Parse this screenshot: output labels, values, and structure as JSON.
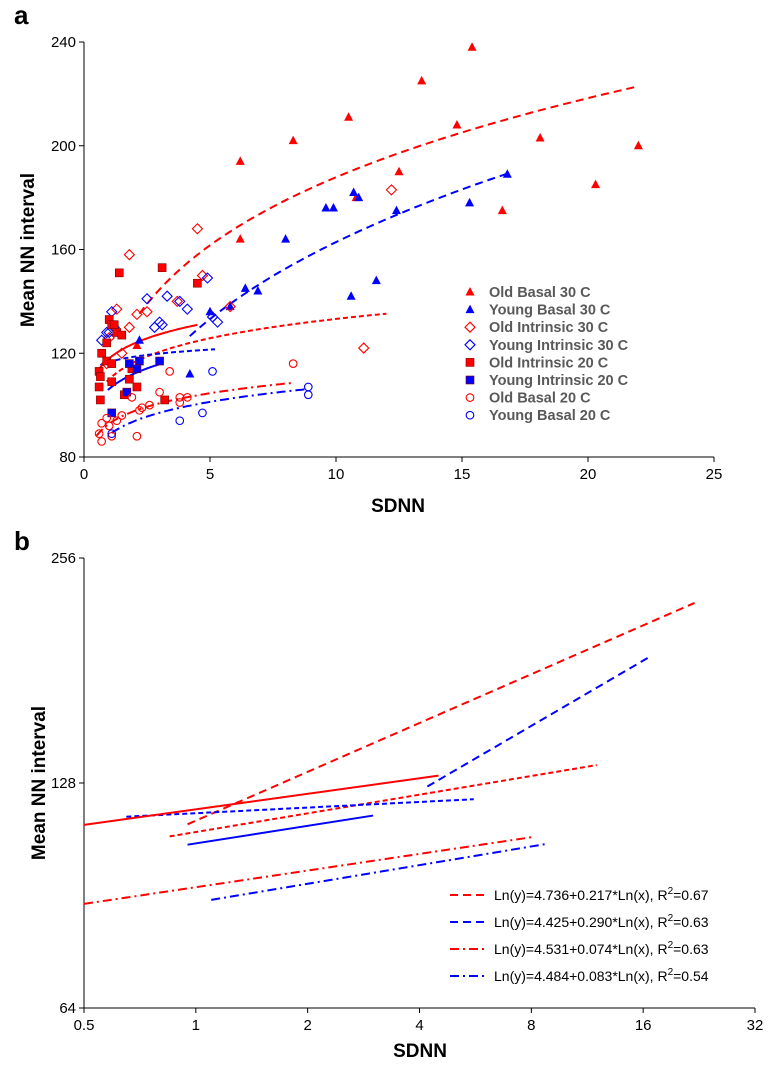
{
  "chart_data": [
    {
      "panel": "a",
      "type": "scatter",
      "xlabel": "SDNN",
      "ylabel": "Mean NN interval",
      "xlim": [
        0,
        25
      ],
      "ylim": [
        80,
        240
      ],
      "xticks": [
        "0",
        "5",
        "10",
        "15",
        "20",
        "25"
      ],
      "yticks": [
        "80",
        "120",
        "160",
        "200",
        "240"
      ],
      "legend_position": "right-middle",
      "colors": {
        "old": "#ff0000",
        "young": "#0000ff"
      },
      "series": [
        {
          "name": "Old Basal 30 C",
          "color": "#ff0000",
          "marker": "triangle",
          "filled": true,
          "points": [
            [
              15.4,
              238
            ],
            [
              13.4,
              225
            ],
            [
              10.5,
              211
            ],
            [
              14.8,
              208
            ],
            [
              8.3,
              202
            ],
            [
              18.1,
              203
            ],
            [
              22,
              200
            ],
            [
              6.2,
              194
            ],
            [
              12.5,
              190
            ],
            [
              20.3,
              185
            ],
            [
              10.8,
              180
            ],
            [
              16.6,
              175
            ],
            [
              6.2,
              164
            ],
            [
              2.1,
              123
            ]
          ]
        },
        {
          "name": "Young Basal 30 C",
          "color": "#0000ff",
          "marker": "triangle",
          "filled": true,
          "points": [
            [
              16.8,
              189
            ],
            [
              10.7,
              182
            ],
            [
              10.9,
              180
            ],
            [
              9.6,
              176
            ],
            [
              9.9,
              176
            ],
            [
              12.4,
              175
            ],
            [
              15.3,
              178
            ],
            [
              8,
              164
            ],
            [
              6.4,
              145
            ],
            [
              6.9,
              144
            ],
            [
              5,
              136
            ],
            [
              5.8,
              138
            ],
            [
              11.6,
              148
            ],
            [
              10.6,
              142
            ],
            [
              4.2,
              112
            ],
            [
              2.2,
              125
            ]
          ]
        },
        {
          "name": "Old Intrinsic 30 C",
          "color": "#ff0000",
          "marker": "diamond",
          "filled": false,
          "points": [
            [
              1.8,
              158
            ],
            [
              4.5,
              168
            ],
            [
              12.2,
              183
            ],
            [
              4.7,
              150
            ],
            [
              1.3,
              137
            ],
            [
              2.1,
              135
            ],
            [
              2.5,
              136
            ],
            [
              5.8,
              138
            ],
            [
              1.8,
              130
            ],
            [
              3.7,
              140
            ],
            [
              11.1,
              122
            ],
            [
              1,
              126
            ],
            [
              1.5,
              120
            ],
            [
              0.9,
              116
            ]
          ]
        },
        {
          "name": "Young Intrinsic 30 C",
          "color": "#0000ff",
          "marker": "diamond",
          "filled": false,
          "points": [
            [
              4.9,
              149
            ],
            [
              3.3,
              142
            ],
            [
              3.8,
              140
            ],
            [
              2.5,
              141
            ],
            [
              1.1,
              136
            ],
            [
              2.8,
              130
            ],
            [
              3.1,
              131
            ],
            [
              4.1,
              137
            ],
            [
              5.1,
              134
            ],
            [
              5.3,
              132
            ],
            [
              0.9,
              128
            ],
            [
              1.2,
              130
            ],
            [
              0.7,
              125
            ],
            [
              1,
              128
            ],
            [
              3,
              132
            ]
          ]
        },
        {
          "name": "Old Intrinsic 20 C",
          "color": "#ff0000",
          "marker": "square",
          "filled": true,
          "points": [
            [
              1.4,
              151
            ],
            [
              3.1,
              153
            ],
            [
              4.5,
              147
            ],
            [
              1,
              133
            ],
            [
              1.1,
              131
            ],
            [
              1.2,
              131
            ],
            [
              1.3,
              128
            ],
            [
              1.5,
              127
            ],
            [
              0.9,
              124
            ],
            [
              0.7,
              120
            ],
            [
              0.9,
              117
            ],
            [
              1.1,
              116
            ],
            [
              0.6,
              113
            ],
            [
              0.65,
              111
            ],
            [
              0.6,
              107
            ],
            [
              1.1,
              109
            ],
            [
              1.6,
              104
            ],
            [
              0.65,
              102
            ],
            [
              1.9,
              114
            ],
            [
              1.8,
              110
            ],
            [
              2.1,
              107
            ],
            [
              3.2,
              102
            ]
          ]
        },
        {
          "name": "Young Intrinsic 20 C",
          "color": "#0000ff",
          "marker": "square",
          "filled": true,
          "points": [
            [
              1.8,
              116
            ],
            [
              2.2,
              117
            ],
            [
              3,
              117
            ],
            [
              2.1,
              114
            ],
            [
              1.7,
              105
            ],
            [
              1.1,
              97
            ]
          ]
        },
        {
          "name": "Old Basal 20 C",
          "color": "#ff0000",
          "marker": "circle",
          "filled": false,
          "points": [
            [
              8.3,
              116
            ],
            [
              3.4,
              113
            ],
            [
              3,
              105
            ],
            [
              3.8,
              103
            ],
            [
              4.1,
              103
            ],
            [
              3.8,
              101
            ],
            [
              2.3,
              99
            ],
            [
              2.6,
              100
            ],
            [
              2.2,
              98
            ],
            [
              1.9,
              103
            ],
            [
              1.5,
              96
            ],
            [
              0.9,
              95
            ],
            [
              1.3,
              94
            ],
            [
              0.7,
              93
            ],
            [
              1,
              92
            ],
            [
              0.6,
              89
            ],
            [
              1.1,
              88
            ],
            [
              2.1,
              88
            ],
            [
              0.7,
              86
            ]
          ]
        },
        {
          "name": "Young Basal 20 C",
          "color": "#0000ff",
          "marker": "circle",
          "filled": false,
          "points": [
            [
              8.9,
              107
            ],
            [
              8.9,
              104
            ],
            [
              5.1,
              113
            ],
            [
              4.7,
              97
            ],
            [
              3.8,
              94
            ],
            [
              1.1,
              89
            ]
          ]
        }
      ],
      "fits": [
        {
          "color": "#ff0000",
          "dash": "dash",
          "model": "power",
          "a": 4.736,
          "b": 0.217,
          "xrange": [
            2.2,
            22
          ]
        },
        {
          "color": "#0000ff",
          "dash": "dash",
          "model": "power",
          "a": 4.425,
          "b": 0.29,
          "xrange": [
            4.2,
            16.8
          ]
        },
        {
          "color": "#ff0000",
          "dash": "shortdash",
          "model": "power",
          "a": 4.701,
          "b": 0.083,
          "xrange": [
            0.9,
            12
          ]
        },
        {
          "color": "#0000ff",
          "dash": "shortdash",
          "model": "power",
          "a": 4.759,
          "b": 0.025,
          "xrange": [
            0.65,
            5.2
          ]
        },
        {
          "color": "#ff0000",
          "dash": "solid",
          "model": "power",
          "a": 4.771,
          "b": 0.069,
          "xrange": [
            0.5,
            4.5
          ]
        },
        {
          "color": "#0000ff",
          "dash": "solid",
          "model": "power",
          "a": 4.666,
          "b": 0.078,
          "xrange": [
            0.95,
            3
          ]
        },
        {
          "color": "#ff0000",
          "dash": "dashdot",
          "model": "power",
          "a": 4.531,
          "b": 0.074,
          "xrange": [
            0.5,
            8.3
          ]
        },
        {
          "color": "#0000ff",
          "dash": "dashdot",
          "model": "power",
          "a": 4.484,
          "b": 0.083,
          "xrange": [
            1.1,
            8.9
          ]
        }
      ]
    },
    {
      "panel": "b",
      "type": "line",
      "xlabel": "SDNN",
      "ylabel": "Mean NN interval",
      "xscale": "log2",
      "yscale": "log2",
      "xlim": [
        0.5,
        32
      ],
      "ylim": [
        64,
        256
      ],
      "xticks": [
        "0.5",
        "1",
        "2",
        "4",
        "8",
        "16",
        "32"
      ],
      "yticks": [
        "64",
        "128",
        "256"
      ],
      "legend_position": "bottom-right",
      "lines": [
        {
          "color": "#ff0000",
          "dash": "dash",
          "a": 4.736,
          "b": 0.217,
          "xrange": [
            0.95,
            22
          ]
        },
        {
          "color": "#0000ff",
          "dash": "dash",
          "a": 4.425,
          "b": 0.29,
          "xrange": [
            4.2,
            16.8
          ]
        },
        {
          "color": "#ff0000",
          "dash": "shortdash",
          "a": 4.701,
          "b": 0.083,
          "xrange": [
            0.85,
            12
          ]
        },
        {
          "color": "#0000ff",
          "dash": "shortdash",
          "a": 4.759,
          "b": 0.025,
          "xrange": [
            0.65,
            5.6
          ]
        },
        {
          "color": "#ff0000",
          "dash": "solid",
          "a": 4.771,
          "b": 0.069,
          "xrange": [
            0.5,
            4.5
          ]
        },
        {
          "color": "#0000ff",
          "dash": "solid",
          "a": 4.666,
          "b": 0.078,
          "xrange": [
            0.95,
            3
          ]
        },
        {
          "color": "#ff0000",
          "dash": "dashdot",
          "a": 4.531,
          "b": 0.074,
          "xrange": [
            0.5,
            8.1
          ]
        },
        {
          "color": "#0000ff",
          "dash": "dashdot",
          "a": 4.484,
          "b": 0.083,
          "xrange": [
            1.1,
            8.8
          ]
        }
      ],
      "legend": [
        {
          "color": "#ff0000",
          "dash": "dash",
          "eq": "Ln(y)=4.736+0.217*Ln(x), R",
          "sup": "2",
          "r2": "=0.67"
        },
        {
          "color": "#0000ff",
          "dash": "dash",
          "eq": "Ln(y)=4.425+0.290*Ln(x), R",
          "sup": "2",
          "r2": "=0.63"
        },
        {
          "color": "#ff0000",
          "dash": "dashdot",
          "eq": "Ln(y)=4.531+0.074*Ln(x), R",
          "sup": "2",
          "r2": "=0.63"
        },
        {
          "color": "#0000ff",
          "dash": "dashdot",
          "eq": "Ln(y)=4.484+0.083*Ln(x), R",
          "sup": "2",
          "r2": "=0.54"
        }
      ]
    }
  ]
}
